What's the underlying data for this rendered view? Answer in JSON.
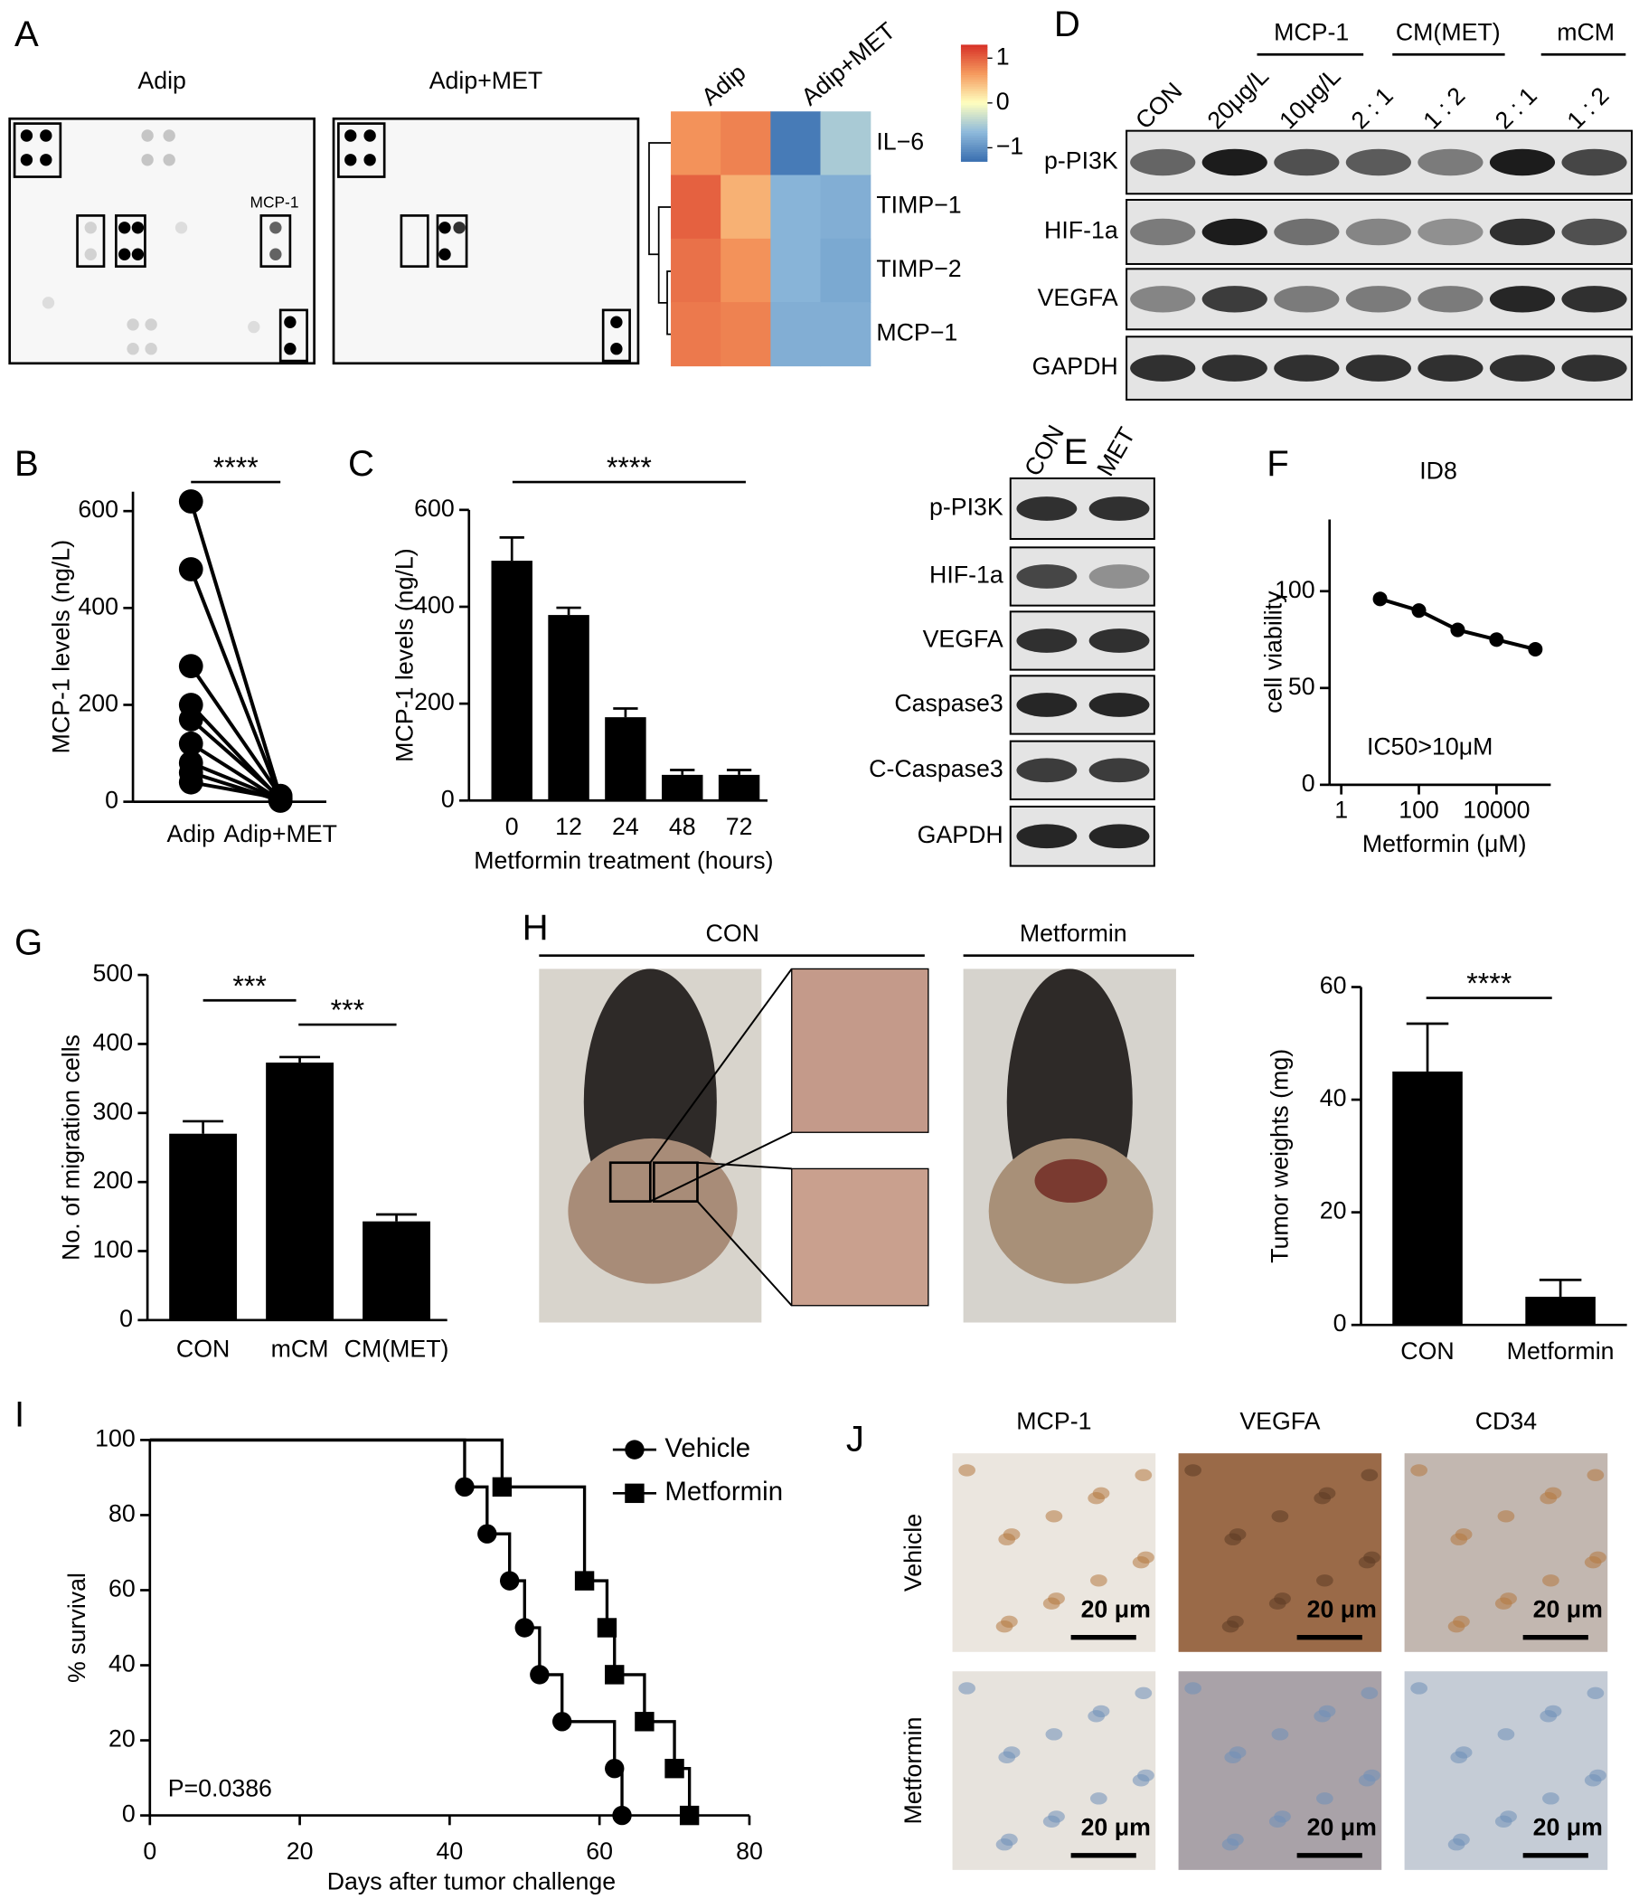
{
  "figure": {
    "panel_labels": [
      "A",
      "B",
      "C",
      "D",
      "E",
      "F",
      "G",
      "H",
      "I",
      "J"
    ],
    "array_titles": [
      "Adip",
      "Adip+MET"
    ],
    "array_spot_label": "MCP-1",
    "blot_d": {
      "groups": [
        "MCP-1",
        "CM(MET)",
        "mCM"
      ],
      "lanes": [
        "CON",
        "20μg/L",
        "10μg/L",
        "2 : 1",
        "1 : 2",
        "2 : 1",
        "1 : 2"
      ],
      "rows": [
        "p-PI3K",
        "HIF-1a",
        "VEGFA",
        "GAPDH"
      ]
    },
    "blot_e": {
      "lanes": [
        "CON",
        "MET"
      ],
      "rows": [
        "p-PI3K",
        "HIF-1a",
        "VEGFA",
        "Caspase3",
        "C-Caspase3",
        "GAPDH"
      ]
    },
    "photo_titles": [
      "CON",
      "Metformin"
    ],
    "ihc": {
      "columns": [
        "MCP-1",
        "VEGFA",
        "CD34"
      ],
      "rows": [
        "Vehicle",
        "Metformin"
      ],
      "scale_bars": [
        "20 μm",
        "20 μm",
        "20 μm",
        "20 μm",
        "20 μm",
        "20 μm"
      ]
    }
  },
  "chart_data": [
    {
      "type": "heatmap",
      "column_groups": [
        "Adip",
        "Adip+MET"
      ],
      "rows": [
        "IL−6",
        "TIMP−1",
        "TIMP−2",
        "MCP−1"
      ],
      "values": [
        [
          0.7,
          0.8,
          -1.2,
          -0.5
        ],
        [
          1.0,
          0.5,
          -0.7,
          -0.75
        ],
        [
          0.9,
          0.7,
          -0.7,
          -0.8
        ],
        [
          0.85,
          0.8,
          -0.75,
          -0.75
        ]
      ],
      "zlim": [
        -1.3,
        1.3
      ],
      "zticks": [
        1,
        0,
        {
          "value": -1,
          "label": "−1"
        }
      ]
    },
    {
      "type": "paired",
      "categories": [
        "Adip",
        "Adip+MET"
      ],
      "ylabel": "MCP-1 levels (ng/L)",
      "ylim": [
        0,
        640
      ],
      "yticks": [
        0,
        200,
        400,
        600
      ],
      "values": [
        [
          620,
          10
        ],
        [
          480,
          6
        ],
        [
          280,
          12
        ],
        [
          200,
          4
        ],
        [
          170,
          8
        ],
        [
          120,
          3
        ],
        [
          80,
          5
        ],
        [
          60,
          2
        ],
        [
          40,
          7
        ]
      ],
      "annotations": [
        "****"
      ]
    },
    {
      "type": "bar",
      "categories": [
        "0",
        "12",
        "24",
        "48",
        "72"
      ],
      "values": [
        495,
        383,
        172,
        53,
        53
      ],
      "errors": [
        48,
        15,
        18,
        10,
        10
      ],
      "color": "#000000",
      "xlabel": "Metformin treatment (hours)",
      "ylabel": "MCP-1 levels (ng/L)",
      "ylim": [
        0,
        600
      ],
      "yticks": [
        0,
        200,
        400,
        600
      ],
      "annotations": [
        "****"
      ]
    },
    {
      "type": "line",
      "title": "ID8",
      "xlabel": "Metformin (μM)",
      "ylabel": "cell viability",
      "xscale": "log",
      "x": [
        10,
        100,
        1000,
        10000,
        100000
      ],
      "values": [
        96,
        90,
        80,
        75,
        70
      ],
      "xlim": [
        0.5,
        250000
      ],
      "xticks": [
        1,
        100,
        10000
      ],
      "ylim": [
        0,
        137
      ],
      "yticks": [
        0,
        50,
        100
      ],
      "annotation": "IC50>10μM"
    },
    {
      "type": "bar",
      "categories": [
        "CON",
        "mCM",
        "CM(MET)"
      ],
      "values": [
        270,
        373,
        143
      ],
      "errors": [
        18,
        8,
        10
      ],
      "color": "#000000",
      "ylabel": "No. of migration cells",
      "ylim": [
        0,
        500
      ],
      "yticks": [
        0,
        100,
        200,
        300,
        400,
        500
      ],
      "annotations": [
        "***",
        "***"
      ]
    },
    {
      "type": "bar",
      "categories": [
        "CON",
        "Metformin"
      ],
      "values": [
        45,
        5
      ],
      "errors": [
        8.5,
        3
      ],
      "color": "#000000",
      "ylabel": "Tumor weights (mg)",
      "ylim": [
        0,
        60
      ],
      "yticks": [
        0,
        20,
        40,
        60
      ],
      "annotations": [
        "****"
      ]
    },
    {
      "type": "step",
      "xlabel": "Days after tumor challenge",
      "ylabel": "% survival",
      "xlim": [
        0,
        80
      ],
      "xticks": [
        0,
        20,
        40,
        60,
        80
      ],
      "ylim": [
        0,
        100
      ],
      "yticks": [
        0,
        20,
        40,
        60,
        80,
        100
      ],
      "annotation": "P=0.0386",
      "series": [
        {
          "name": "Vehicle",
          "marker": "circle",
          "x": [
            0,
            42,
            45,
            48,
            50,
            52,
            55,
            62,
            63
          ],
          "values": [
            100,
            87.5,
            75,
            62.5,
            50,
            37.5,
            25,
            12.5,
            0
          ]
        },
        {
          "name": "Metformin",
          "marker": "square",
          "x": [
            0,
            47,
            58,
            61,
            62,
            66,
            70,
            72
          ],
          "values": [
            100,
            87.5,
            62.5,
            50,
            37.5,
            25,
            12.5,
            0
          ]
        }
      ]
    }
  ]
}
